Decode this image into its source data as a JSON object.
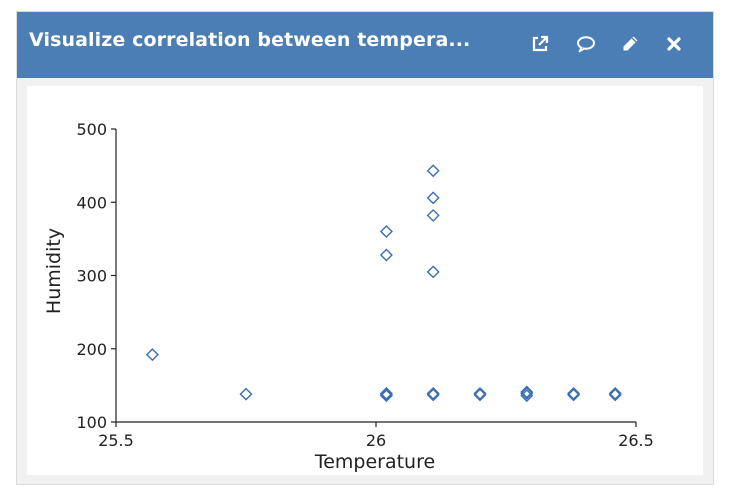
{
  "widget": {
    "title": "Visualize correlation between tempera...",
    "header_color": "#4a7eb4",
    "tools": [
      {
        "name": "open-external-icon"
      },
      {
        "name": "comment-icon"
      },
      {
        "name": "edit-pencil-icon"
      },
      {
        "name": "close-icon"
      }
    ]
  },
  "chart_data": {
    "type": "scatter",
    "xlabel": "Temperature",
    "ylabel": "Humidity",
    "xlim": [
      25.5,
      26.5
    ],
    "ylim": [
      100,
      500
    ],
    "xticks": [
      25.5,
      26,
      26.5
    ],
    "xtick_labels": [
      "25.5",
      "26",
      "26.5"
    ],
    "yticks": [
      100,
      200,
      300,
      400,
      500
    ],
    "ytick_labels": [
      "100",
      "200",
      "300",
      "400",
      "500"
    ],
    "marker": "diamond-open",
    "color": "#3a6fb5",
    "points": [
      {
        "x": 25.57,
        "y": 192
      },
      {
        "x": 25.75,
        "y": 138
      },
      {
        "x": 26.02,
        "y": 360
      },
      {
        "x": 26.02,
        "y": 328
      },
      {
        "x": 26.02,
        "y": 139
      },
      {
        "x": 26.02,
        "y": 137
      },
      {
        "x": 26.02,
        "y": 136
      },
      {
        "x": 26.11,
        "y": 443
      },
      {
        "x": 26.11,
        "y": 406
      },
      {
        "x": 26.11,
        "y": 382
      },
      {
        "x": 26.11,
        "y": 305
      },
      {
        "x": 26.11,
        "y": 139
      },
      {
        "x": 26.11,
        "y": 137
      },
      {
        "x": 26.2,
        "y": 139
      },
      {
        "x": 26.2,
        "y": 137
      },
      {
        "x": 26.29,
        "y": 141
      },
      {
        "x": 26.29,
        "y": 139
      },
      {
        "x": 26.29,
        "y": 136
      },
      {
        "x": 26.38,
        "y": 139
      },
      {
        "x": 26.38,
        "y": 137
      },
      {
        "x": 26.46,
        "y": 139
      },
      {
        "x": 26.46,
        "y": 137
      }
    ]
  }
}
